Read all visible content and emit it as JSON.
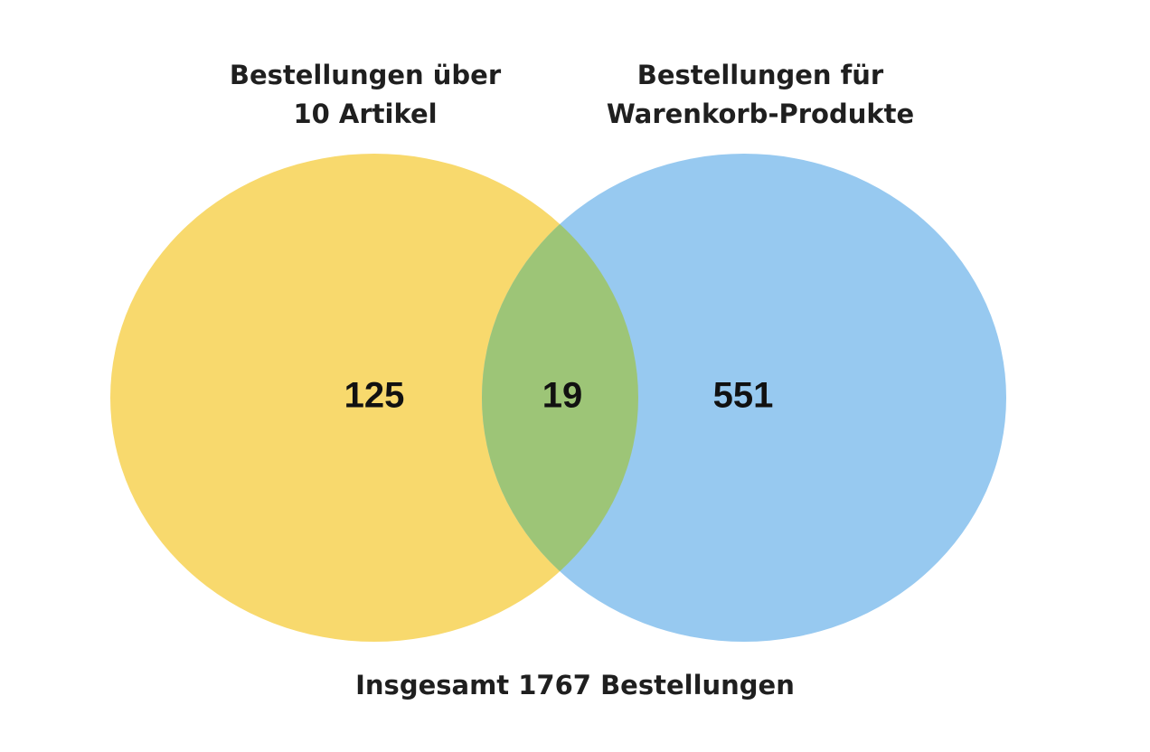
{
  "chart_data": {
    "type": "venn",
    "sets": [
      {
        "name_lines": [
          "Bestellungen über",
          "10 Artikel"
        ],
        "color": "#f8d96d",
        "value": 125
      },
      {
        "name_lines": [
          "Bestellungen für",
          "Warenkorb-Produkte"
        ],
        "color": "#97c9f0",
        "value": 551
      }
    ],
    "intersection": {
      "value": 19,
      "color": "#9dc577"
    },
    "footer": "Insgesamt 1767 Bestellungen"
  }
}
